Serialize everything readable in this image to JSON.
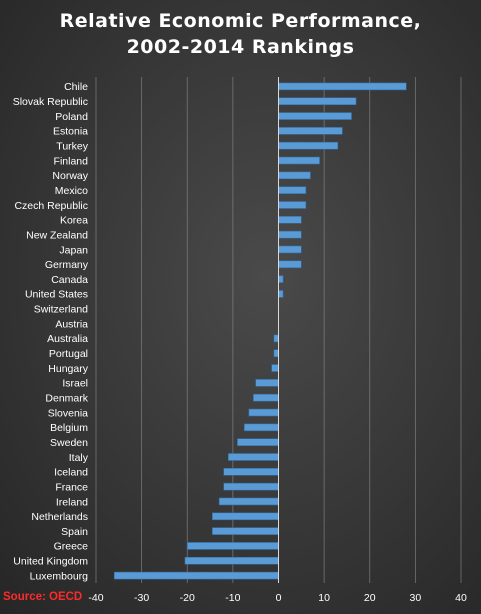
{
  "title_line_1": "Relative Economic Performance,",
  "title_line_2": "2002-2014 Rankings",
  "source": "Source: OECD",
  "colors": {
    "bar_fill": "#5b9bd5",
    "bar_edge": "#2f6ea8",
    "grid": "#8a8a8a",
    "axis": "#d9d9d9",
    "text": "#ffffff",
    "source": "#ff2a2a"
  },
  "chart_data": {
    "type": "bar",
    "orientation": "horizontal",
    "categories": [
      "Chile",
      "Slovak Republic",
      "Poland",
      "Estonia",
      "Turkey",
      "Finland",
      "Norway",
      "Mexico",
      "Czech Republic",
      "Korea",
      "New Zealand",
      "Japan",
      "Germany",
      "Canada",
      "United States",
      "Switzerland",
      "Austria",
      "Australia",
      "Portugal",
      "Hungary",
      "Israel",
      "Denmark",
      "Slovenia",
      "Belgium",
      "Sweden",
      "Italy",
      "Iceland",
      "France",
      "Ireland",
      "Netherlands",
      "Spain",
      "Greece",
      "United Kingdom",
      "Luxembourg"
    ],
    "values": [
      28,
      17,
      16,
      14,
      13,
      9,
      7,
      6,
      6,
      5,
      5,
      5,
      5,
      1,
      1,
      0,
      0,
      -1,
      -1,
      -1.5,
      -5,
      -5.5,
      -6.5,
      -7.5,
      -9,
      -11,
      -12,
      -12,
      -13,
      -14.5,
      -14.5,
      -20,
      -20.5,
      -36
    ],
    "xlim": [
      -40,
      40
    ],
    "xticks": [
      -40,
      -30,
      -20,
      -10,
      0,
      10,
      20,
      30,
      40
    ],
    "grid": true,
    "legend": "none",
    "title": "Relative Economic Performance, 2002-2014 Rankings"
  }
}
